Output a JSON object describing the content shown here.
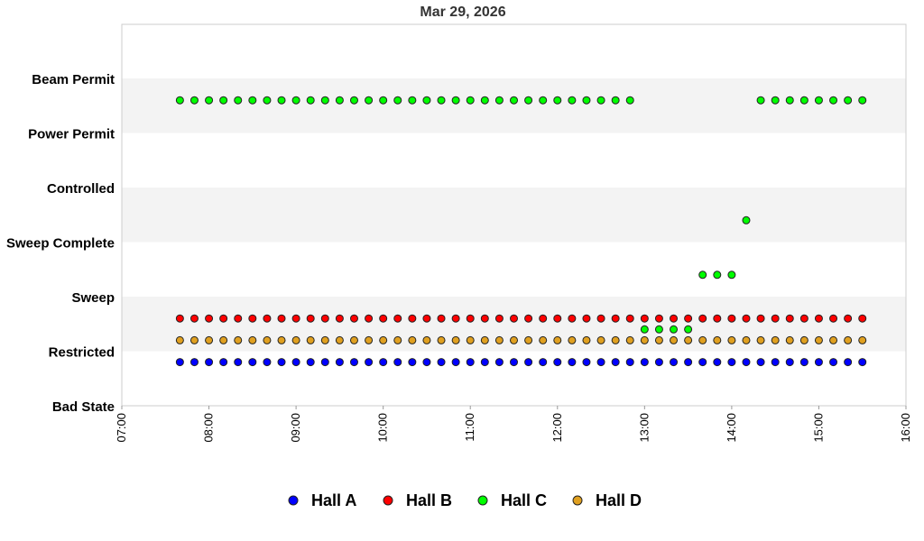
{
  "chart_data": {
    "type": "scatter",
    "title": "Mar 29, 2026",
    "xlabel": "",
    "ylabel": "",
    "x_ticks": [
      "07:00",
      "08:00",
      "09:00",
      "10:00",
      "11:00",
      "12:00",
      "13:00",
      "14:00",
      "15:00",
      "16:00"
    ],
    "x_range": [
      "07:00",
      "16:00"
    ],
    "y_levels": [
      "Bad State",
      "Restricted",
      "Sweep",
      "Sweep Complete",
      "Controlled",
      "Power Permit",
      "Beam Permit"
    ],
    "band_colors": [
      "#ffffff",
      "#f3f3f3"
    ],
    "legend": {
      "placement": "bottom"
    },
    "series": [
      {
        "name": "Hall A",
        "color": "#0000ff",
        "segments": [
          {
            "from": "07:40",
            "to": "15:30",
            "level": "Restricted",
            "offset": -0.2
          }
        ]
      },
      {
        "name": "Hall B",
        "color": "#ff0000",
        "segments": [
          {
            "from": "07:40",
            "to": "15:30",
            "level": "Restricted",
            "offset": 0.6
          }
        ]
      },
      {
        "name": "Hall C",
        "color": "#00ff00",
        "segments": [
          {
            "from": "07:40",
            "to": "12:50",
            "level": "Beam Permit",
            "offset": -0.4
          },
          {
            "from": "13:00",
            "to": "13:30",
            "level": "Restricted",
            "offset": 0.4
          },
          {
            "from": "13:40",
            "to": "14:00",
            "level": "Sweep",
            "offset": 0.4
          },
          {
            "from": "14:10",
            "to": "14:10",
            "level": "Sweep Complete",
            "offset": 0.4
          },
          {
            "from": "14:20",
            "to": "15:30",
            "level": "Beam Permit",
            "offset": -0.4
          }
        ]
      },
      {
        "name": "Hall D",
        "color": "#e0a020",
        "segments": [
          {
            "from": "07:40",
            "to": "15:30",
            "level": "Restricted",
            "offset": 0.2
          }
        ]
      }
    ]
  }
}
